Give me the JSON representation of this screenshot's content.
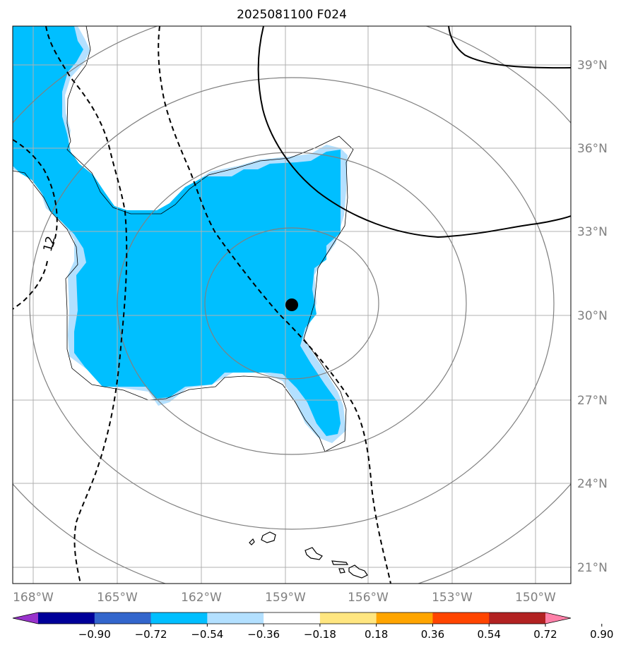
{
  "title": "2025081100 F024",
  "lon_labels": [
    "168°W",
    "165°W",
    "162°W",
    "159°W",
    "156°W",
    "153°W",
    "150°W"
  ],
  "lat_labels": [
    "39°N",
    "36°N",
    "33°N",
    "30°N",
    "27°N",
    "24°N",
    "21°N"
  ],
  "contour_label": "12",
  "colorbar": {
    "colors": [
      "#9933cc",
      "#000099",
      "#3366cc",
      "#00bfff",
      "#b3e0ff",
      "#ffffff",
      "#ffe680",
      "#ffa500",
      "#ff4500",
      "#b22222",
      "#ff80a8"
    ],
    "ticks": [
      "−0.90",
      "−0.72",
      "−0.54",
      "−0.36",
      "−0.18",
      "0.18",
      "0.36",
      "0.54",
      "0.72",
      "0.90"
    ]
  },
  "colors": {
    "grid": "#b0b0b0",
    "range_rings": "#808080",
    "label_gray": "#808080",
    "fill_main": "#00bfff",
    "fill_edge": "#b3e0ff",
    "contour": "#000000"
  }
}
